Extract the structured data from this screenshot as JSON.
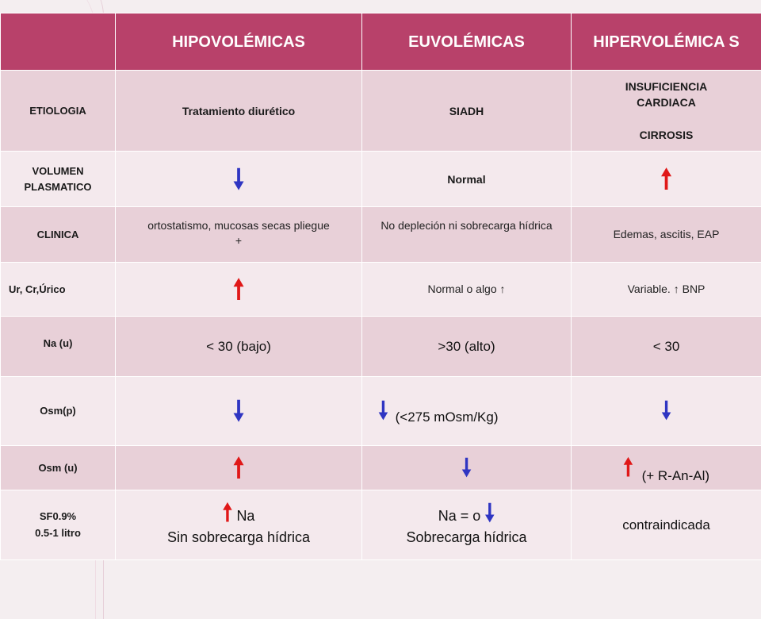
{
  "colors": {
    "header_bg": "#b8416a",
    "row_dark": "#e8d0d8",
    "row_light": "#f4e9ed",
    "up_arrow": "#e01818",
    "down_arrow": "#2f35c2"
  },
  "header": {
    "col1": "",
    "col2": "HIPOVOLÉMICAS",
    "col3": "EUVOLÉMICAS",
    "col4": "HIPERVOLÉMICA S"
  },
  "arrows": {
    "up": "🠕",
    "down": "🠗"
  },
  "rows": {
    "etiologia": {
      "label": "ETIOLOGIA",
      "hipo": "Tratamiento diurético",
      "eu": "SIADH",
      "hiper_line1": "INSUFICIENCIA CARDIACA",
      "hiper_line2": "CIRROSIS"
    },
    "volumen": {
      "label_line1": "VOLUMEN",
      "label_line2": "PLASMATICO",
      "hipo_icon": "arrow-down",
      "eu": "Normal",
      "hiper_icon": "arrow-up"
    },
    "clinica": {
      "label": "CLINICA",
      "hipo": "ortostatismo, mucosas secas pliegue +",
      "eu": "No depleción ni sobrecarga hídrica",
      "hiper": "Edemas, ascitis, EAP"
    },
    "urico": {
      "label": "Ur, Cr,Úrico",
      "hipo_icon": "arrow-up",
      "eu": "Normal o algo ↑",
      "hiper": "Variable. ↑ BNP"
    },
    "na_u": {
      "label": "Na (u)",
      "hipo": "< 30 (bajo)",
      "eu": ">30 (alto)",
      "hiper": "< 30"
    },
    "osm_p": {
      "label": "Osm(p)",
      "hipo_icon": "arrow-down",
      "eu_icon": "arrow-down",
      "eu": "(<275 mOsm/Kg)",
      "hiper_icon": "arrow-down"
    },
    "osm_u": {
      "label": "Osm (u)",
      "hipo_icon": "arrow-up",
      "eu_icon": "arrow-down",
      "hiper_icon": "arrow-up",
      "hiper": "(+ R-An-Al)"
    },
    "sf": {
      "label_line1": "SF0.9%",
      "label_line2": "0.5-1 litro",
      "hipo_icon": "arrow-up",
      "hipo_line1": "Na",
      "hipo_line2": "Sin sobrecarga hídrica",
      "eu_line1": "Na = o",
      "eu_icon": "arrow-down",
      "eu_line2": "Sobrecarga hídrica",
      "hiper": "contraindicada"
    }
  }
}
